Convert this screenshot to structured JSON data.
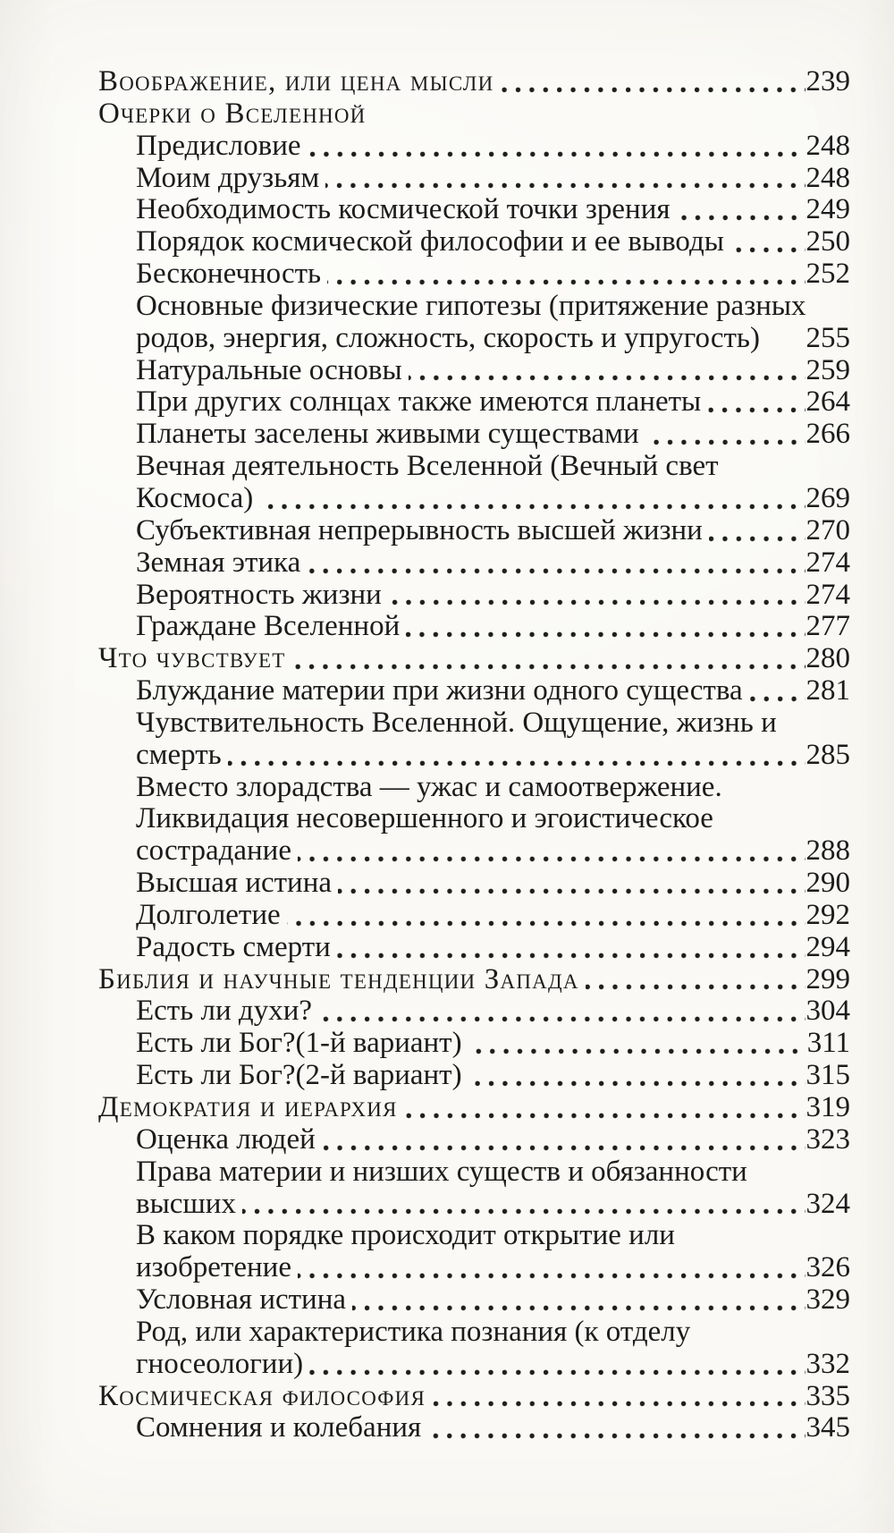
{
  "page": {
    "paper_color": "#faf9f5",
    "ink_color": "#1c1c1c"
  },
  "toc": {
    "lines": [
      {
        "style": "chapter",
        "text": "Воображение, или цена мысли",
        "page": "239",
        "leader": true
      },
      {
        "style": "chapter",
        "text": "Очерки о Вселенной",
        "page": "",
        "leader": false
      },
      {
        "style": "section",
        "text": "Предисловие",
        "page": "248",
        "leader": true
      },
      {
        "style": "section",
        "text": "Моим друзьям",
        "page": "248",
        "leader": true
      },
      {
        "style": "section",
        "text": "Необходимость космической точки зрения",
        "page": "249",
        "leader": true
      },
      {
        "style": "section",
        "text": "Порядок космической философии и ее выводы",
        "page": "250",
        "leader": true
      },
      {
        "style": "section",
        "text": "Бесконечность",
        "page": "252",
        "leader": true
      },
      {
        "style": "section",
        "text": "Основные физические гипотезы (притяжение разных",
        "page": "",
        "leader": false
      },
      {
        "style": "cont",
        "text": "родов, энергия, сложность, скорость и упругость)",
        "page": "255",
        "leader": false
      },
      {
        "style": "section",
        "text": "Натуральные основы",
        "page": "259",
        "leader": true
      },
      {
        "style": "section",
        "text": "При других солнцах также имеются планеты",
        "page": "264",
        "leader": true
      },
      {
        "style": "section",
        "text": "Планеты заселены живыми существами",
        "page": "266",
        "leader": true
      },
      {
        "style": "section",
        "text": "Вечная деятельность Вселенной (Вечный свет",
        "page": "",
        "leader": false
      },
      {
        "style": "cont",
        "text": "Космоса)",
        "page": "269",
        "leader": true
      },
      {
        "style": "section",
        "text": "Субъективная непрерывность высшей жизни",
        "page": "270",
        "leader": true
      },
      {
        "style": "section",
        "text": "Земная этика",
        "page": "274",
        "leader": true
      },
      {
        "style": "section",
        "text": "Вероятность жизни",
        "page": "274",
        "leader": true
      },
      {
        "style": "section",
        "text": "Граждане Вселенной",
        "page": "277",
        "leader": true
      },
      {
        "style": "chapter",
        "text": "Что чувствует",
        "page": "280",
        "leader": true
      },
      {
        "style": "section",
        "text": "Блуждание материи при жизни одного существа",
        "page": "281",
        "leader": true
      },
      {
        "style": "section",
        "text": "Чувствительность Вселенной. Ощущение, жизнь и",
        "page": "",
        "leader": false
      },
      {
        "style": "cont",
        "text": "смерть",
        "page": "285",
        "leader": true
      },
      {
        "style": "section",
        "text": "Вместо злорадства — ужас и самоотвержение.",
        "page": "",
        "leader": false
      },
      {
        "style": "cont",
        "text": "Ликвидация несовершенного и эгоистическое",
        "page": "",
        "leader": false
      },
      {
        "style": "cont",
        "text": "сострадание",
        "page": "288",
        "leader": true
      },
      {
        "style": "section",
        "text": "Высшая истина",
        "page": "290",
        "leader": true
      },
      {
        "style": "section",
        "text": "Долголетие",
        "page": "292",
        "leader": true
      },
      {
        "style": "section",
        "text": "Радость смерти",
        "page": "294",
        "leader": true
      },
      {
        "style": "chapter",
        "text": "Библия и научные тенденции Запада",
        "page": "299",
        "leader": true
      },
      {
        "style": "section",
        "text": "Есть ли духи?",
        "page": "304",
        "leader": true
      },
      {
        "style": "section",
        "text": "Есть ли Бог?(1-й вариант)",
        "page": "311",
        "leader": true
      },
      {
        "style": "section",
        "text": "Есть ли Бог?(2-й вариант)",
        "page": "315",
        "leader": true
      },
      {
        "style": "chapter",
        "text": "Демократия и иерархия",
        "page": "319",
        "leader": true
      },
      {
        "style": "section",
        "text": "Оценка людей",
        "page": "323",
        "leader": true
      },
      {
        "style": "section",
        "text": "Права материи и низших существ и обязанности",
        "page": "",
        "leader": false
      },
      {
        "style": "cont",
        "text": "высших",
        "page": "324",
        "leader": true
      },
      {
        "style": "section",
        "text": "В каком порядке происходит открытие или",
        "page": "",
        "leader": false
      },
      {
        "style": "cont",
        "text": "изобретение",
        "page": "326",
        "leader": true
      },
      {
        "style": "section",
        "text": "Условная истина",
        "page": "329",
        "leader": true
      },
      {
        "style": "section",
        "text": "Род, или характеристика познания (к отделу",
        "page": "",
        "leader": false
      },
      {
        "style": "cont",
        "text": "гносеологии)",
        "page": "332",
        "leader": true
      },
      {
        "style": "chapter",
        "text": "Космическая философия",
        "page": "335",
        "leader": true
      },
      {
        "style": "section",
        "text": "Сомнения и колебания",
        "page": "345",
        "leader": true
      }
    ]
  }
}
